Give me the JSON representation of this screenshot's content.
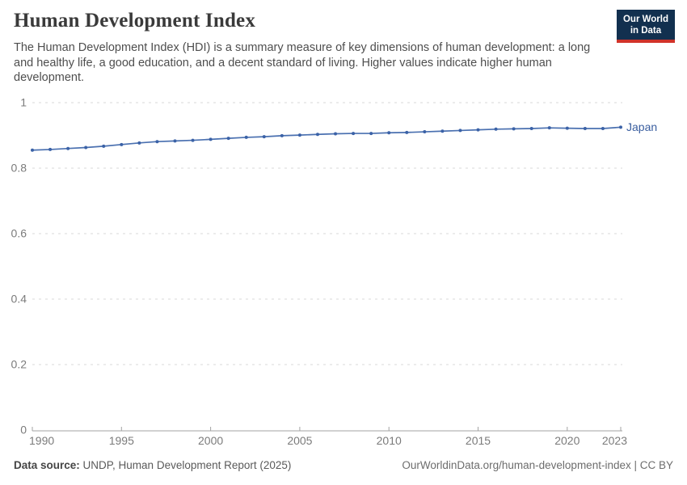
{
  "header": {
    "title": "Human Development Index",
    "subtitle": "The Human Development Index (HDI) is a summary measure of key dimensions of human development: a long and healthy life, a good education, and a decent standard of living. Higher values indicate higher human development.",
    "logo": {
      "line1": "Our World",
      "line2": "in Data",
      "bg_color": "#12304f",
      "stripe_color": "#d13329"
    }
  },
  "chart_data": {
    "type": "line",
    "title": "Human Development Index",
    "x": [
      1990,
      1991,
      1992,
      1993,
      1994,
      1995,
      1996,
      1997,
      1998,
      1999,
      2000,
      2001,
      2002,
      2003,
      2004,
      2005,
      2006,
      2007,
      2008,
      2009,
      2010,
      2011,
      2012,
      2013,
      2014,
      2015,
      2016,
      2017,
      2018,
      2019,
      2020,
      2021,
      2022,
      2023
    ],
    "series": [
      {
        "name": "Japan",
        "color": "#4a70b0",
        "marker_color": "#3b62a7",
        "label_color": "#3a5e9f",
        "values": [
          0.855,
          0.857,
          0.86,
          0.863,
          0.867,
          0.872,
          0.877,
          0.881,
          0.883,
          0.885,
          0.888,
          0.891,
          0.894,
          0.896,
          0.899,
          0.901,
          0.903,
          0.905,
          0.906,
          0.906,
          0.908,
          0.909,
          0.911,
          0.913,
          0.915,
          0.917,
          0.919,
          0.92,
          0.921,
          0.923,
          0.922,
          0.921,
          0.921,
          0.925
        ]
      }
    ],
    "x_ticks": [
      1990,
      1995,
      2000,
      2005,
      2010,
      2015,
      2020,
      2023
    ],
    "y_ticks": [
      0,
      0.2,
      0.4,
      0.6,
      0.8,
      1
    ],
    "xlim": [
      1990,
      2023
    ],
    "ylim": [
      0,
      1
    ],
    "xlabel": "",
    "ylabel": "",
    "grid": true,
    "grid_color": "#d8d8d8",
    "axis_color": "#a3a3a3",
    "tick_label_color": "#7b7b7b",
    "legend_position": "end-of-line"
  },
  "footer": {
    "datasource_label": "Data source:",
    "datasource_value": " UNDP, Human Development Report (2025)",
    "note": "OurWorldinData.org/human-development-index | CC BY"
  }
}
